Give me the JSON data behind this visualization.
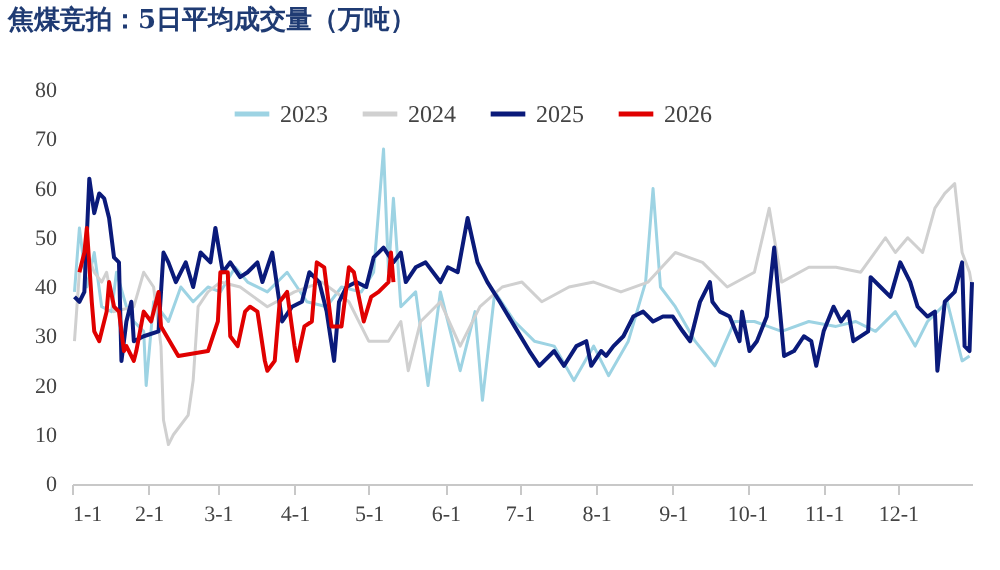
{
  "chart_data": {
    "type": "line",
    "title": "焦煤竞拍：5日平均成交量（万吨）",
    "xlim": [
      "--01-01",
      "--12-31"
    ],
    "xticks": [
      {
        "value": "--01-01",
        "label": "1-1"
      },
      {
        "value": "--02-01",
        "label": "2-1"
      },
      {
        "value": "--03-01",
        "label": "3-1"
      },
      {
        "value": "--04-01",
        "label": "4-1"
      },
      {
        "value": "--05-01",
        "label": "5-1"
      },
      {
        "value": "--06-01",
        "label": "6-1"
      },
      {
        "value": "--07-01",
        "label": "7-1"
      },
      {
        "value": "--08-01",
        "label": "8-1"
      },
      {
        "value": "--09-01",
        "label": "9-1"
      },
      {
        "value": "--10-01",
        "label": "10-1"
      },
      {
        "value": "--11-01",
        "label": "11-1"
      },
      {
        "value": "--12-01",
        "label": "12-1"
      }
    ],
    "ylim": [
      0,
      80
    ],
    "yticks": [
      0,
      10,
      20,
      30,
      40,
      50,
      60,
      70,
      80
    ],
    "grid": false,
    "legend": "top",
    "marker": "none",
    "line_style": "solid",
    "series": [
      {
        "name": "2023",
        "color": "#9dd3e3",
        "x": [
          "--01-02",
          "--01-04",
          "--01-07",
          "--01-10",
          "--01-13",
          "--01-17",
          "--01-19",
          "--01-23",
          "--01-26",
          "--01-30",
          "--01-31",
          "--02-03",
          "--02-09",
          "--02-14",
          "--02-19",
          "--02-25",
          "--03-02",
          "--03-08",
          "--03-13",
          "--03-21",
          "--03-29",
          "--04-06",
          "--04-14",
          "--04-20",
          "--04-28",
          "--05-03",
          "--05-07",
          "--05-09",
          "--05-11",
          "--05-14",
          "--05-20",
          "--05-25",
          "--05-30",
          "--06-07",
          "--06-13",
          "--06-16",
          "--06-21",
          "--06-29",
          "--07-07",
          "--07-15",
          "--07-23",
          "--07-31",
          "--08-06",
          "--08-14",
          "--08-21",
          "--08-24",
          "--08-27",
          "--09-02",
          "--09-10",
          "--09-18",
          "--09-26",
          "--10-04",
          "--10-15",
          "--10-26",
          "--11-06",
          "--11-14",
          "--11-22",
          "--11-30",
          "--12-08",
          "--12-13",
          "--12-21",
          "--12-27",
          "--12-30"
        ],
        "values": [
          39,
          52,
          40,
          47,
          36,
          35,
          43,
          36,
          33,
          31,
          20,
          37,
          33,
          40,
          37,
          40,
          39,
          44,
          41,
          39,
          43,
          37,
          36,
          40,
          39,
          43,
          68,
          43,
          58,
          36,
          39,
          20,
          39,
          23,
          35,
          17,
          39,
          33,
          29,
          28,
          21,
          28,
          22,
          29,
          41,
          60,
          40,
          36,
          29,
          24,
          33,
          33,
          31,
          33,
          32,
          33,
          31,
          35,
          28,
          33,
          37,
          25,
          26
        ]
      },
      {
        "name": "2024",
        "color": "#d0d0d0",
        "x": [
          "--01-02",
          "--01-04",
          "--01-07",
          "--01-10",
          "--01-13",
          "--01-15",
          "--01-18",
          "--01-26",
          "--01-30",
          "--02-03",
          "--02-06",
          "--02-07",
          "--02-09",
          "--02-11",
          "--02-17",
          "--02-19",
          "--02-21",
          "--02-25",
          "--03-02",
          "--03-10",
          "--03-21",
          "--04-01",
          "--04-12",
          "--04-23",
          "--05-01",
          "--05-09",
          "--05-14",
          "--05-17",
          "--05-22",
          "--05-30",
          "--06-07",
          "--06-15",
          "--06-24",
          "--07-02",
          "--07-10",
          "--07-21",
          "--07-31",
          "--08-11",
          "--08-22",
          "--09-02",
          "--09-13",
          "--09-23",
          "--10-04",
          "--10-10",
          "--10-15",
          "--10-26",
          "--11-06",
          "--11-16",
          "--11-26",
          "--11-30",
          "--12-05",
          "--12-11",
          "--12-16",
          "--12-20",
          "--12-24",
          "--12-27",
          "--12-30",
          "--12-31"
        ],
        "values": [
          29,
          43,
          47,
          43,
          41,
          43,
          35,
          36,
          43,
          40,
          28,
          13,
          8,
          10,
          14,
          21,
          36,
          39,
          41,
          40,
          36,
          39,
          41,
          37,
          29,
          29,
          33,
          23,
          33,
          37,
          28,
          36,
          40,
          41,
          37,
          40,
          41,
          39,
          41,
          47,
          45,
          40,
          43,
          56,
          41,
          44,
          44,
          43,
          50,
          47,
          50,
          47,
          56,
          59,
          61,
          47,
          43,
          40
        ]
      },
      {
        "name": "2025",
        "color": "#0a1a7a",
        "x": [
          "--01-02",
          "--01-04",
          "--01-06",
          "--01-08",
          "--01-10",
          "--01-12",
          "--01-14",
          "--01-16",
          "--01-18",
          "--01-20",
          "--01-21",
          "--01-23",
          "--01-25",
          "--01-26",
          "--01-30",
          "--02-05",
          "--02-07",
          "--02-09",
          "--02-12",
          "--02-16",
          "--02-19",
          "--02-22",
          "--02-26",
          "--02-28",
          "--03-03",
          "--03-06",
          "--03-10",
          "--03-13",
          "--03-17",
          "--03-19",
          "--03-23",
          "--03-27",
          "--03-31",
          "--04-04",
          "--04-07",
          "--04-11",
          "--04-14",
          "--04-17",
          "--04-19",
          "--04-22",
          "--04-26",
          "--04-30",
          "--05-03",
          "--05-07",
          "--05-11",
          "--05-14",
          "--05-16",
          "--05-20",
          "--05-24",
          "--05-30",
          "--06-02",
          "--06-06",
          "--06-10",
          "--06-14",
          "--06-18",
          "--06-23",
          "--06-29",
          "--07-05",
          "--07-09",
          "--07-15",
          "--07-19",
          "--07-24",
          "--07-28",
          "--07-30",
          "--08-03",
          "--08-05",
          "--08-08",
          "--08-12",
          "--08-16",
          "--08-20",
          "--08-24",
          "--08-28",
          "--09-01",
          "--09-05",
          "--09-08",
          "--09-12",
          "--09-16",
          "--09-17",
          "--09-20",
          "--09-24",
          "--09-28",
          "--09-29",
          "--10-02",
          "--10-05",
          "--10-09",
          "--10-12",
          "--10-16",
          "--10-20",
          "--10-24",
          "--10-27",
          "--10-29",
          "--11-01",
          "--11-05",
          "--11-08",
          "--11-11",
          "--11-13",
          "--11-19",
          "--11-20",
          "--11-24",
          "--11-28",
          "--12-02",
          "--12-06",
          "--12-09",
          "--12-13",
          "--12-16",
          "--12-17",
          "--12-20",
          "--12-24",
          "--12-27",
          "--12-28",
          "--12-30",
          "--12-31"
        ],
        "values": [
          38,
          37,
          39,
          62,
          55,
          59,
          58,
          54,
          46,
          45,
          25,
          33,
          37,
          29,
          30,
          31,
          47,
          45,
          41,
          45,
          40,
          47,
          45,
          52,
          43,
          45,
          42,
          43,
          45,
          41,
          47,
          33,
          36,
          37,
          43,
          41,
          35,
          25,
          37,
          40,
          41,
          40,
          46,
          48,
          45,
          47,
          41,
          44,
          45,
          41,
          44,
          43,
          54,
          45,
          41,
          37,
          32,
          27,
          24,
          27,
          24,
          28,
          29,
          24,
          27,
          26,
          28,
          30,
          34,
          35,
          33,
          34,
          34,
          31,
          29,
          37,
          41,
          37,
          35,
          34,
          29,
          35,
          27,
          29,
          34,
          48,
          26,
          27,
          30,
          29,
          24,
          31,
          36,
          33,
          35,
          29,
          31,
          42,
          40,
          38,
          45,
          41,
          36,
          34,
          35,
          23,
          37,
          39,
          45,
          28,
          27,
          41
        ]
      },
      {
        "name": "2026",
        "color": "#e00000",
        "x": [
          "--01-04",
          "--01-06",
          "--01-07",
          "--01-09",
          "--01-10",
          "--01-12",
          "--01-15",
          "--01-16",
          "--01-18",
          "--01-20",
          "--01-22",
          "--01-23",
          "--01-26",
          "--01-27",
          "--01-30",
          "--02-02",
          "--02-05",
          "--02-06",
          "--02-13",
          "--02-25",
          "--03-01",
          "--03-02",
          "--03-05",
          "--03-06",
          "--03-09",
          "--03-12",
          "--03-14",
          "--03-17",
          "--03-20",
          "--03-21",
          "--03-24",
          "--03-26",
          "--03-29",
          "--04-01",
          "--04-02",
          "--04-05",
          "--04-08",
          "--04-10",
          "--04-13",
          "--04-16",
          "--04-20",
          "--04-23",
          "--04-25",
          "--04-29",
          "--05-02",
          "--05-05",
          "--05-09",
          "--05-10",
          "--05-11"
        ],
        "values": [
          43,
          47,
          52,
          37,
          31,
          29,
          35,
          41,
          36,
          35,
          27,
          28,
          25,
          27,
          35,
          33,
          39,
          32,
          26,
          27,
          33,
          43,
          43,
          30,
          28,
          35,
          36,
          35,
          25,
          23,
          25,
          37,
          39,
          28,
          25,
          32,
          33,
          45,
          44,
          32,
          32,
          44,
          43,
          33,
          38,
          39,
          41,
          47,
          41
        ]
      }
    ]
  }
}
